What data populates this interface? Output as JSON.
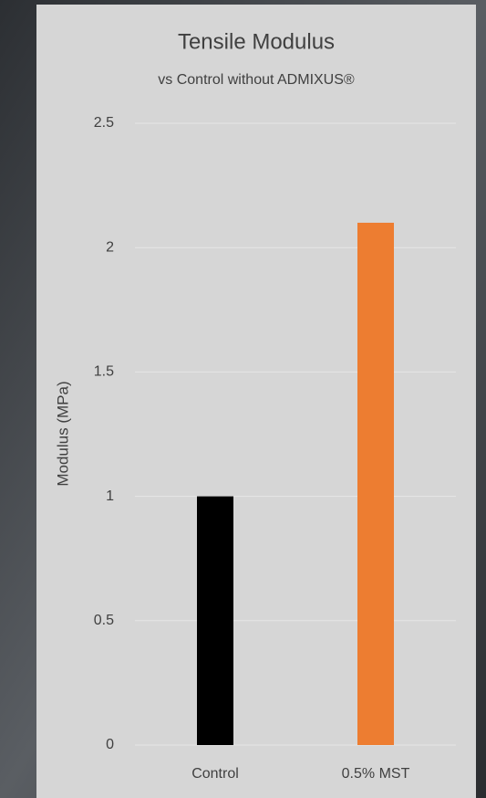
{
  "chart_data": {
    "type": "bar",
    "title": "Tensile Modulus",
    "subtitle": "vs Control without ADMIXUS®",
    "y_label": "Modulus (MPa)",
    "categories": [
      "Control",
      "0.5% MST"
    ],
    "values": [
      1,
      2.1
    ],
    "colors": [
      "#000000",
      "#ed7d31"
    ],
    "ylim": [
      0,
      2.5
    ],
    "yticks": [
      0,
      0.5,
      1,
      1.5,
      2,
      2.5
    ],
    "grid": true
  }
}
